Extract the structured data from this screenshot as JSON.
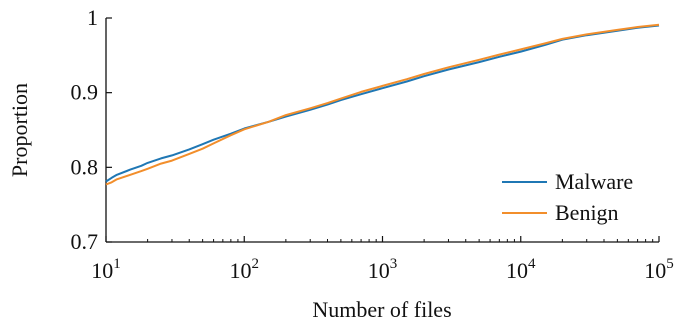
{
  "chart_data": {
    "type": "line",
    "xlabel": "Number of files",
    "ylabel": "Proportion",
    "x_scale": "log",
    "xlim": [
      10,
      100000
    ],
    "ylim": [
      0.7,
      1.0
    ],
    "x_ticks": [
      {
        "value": 10,
        "base": "10",
        "exp": "1"
      },
      {
        "value": 100,
        "base": "10",
        "exp": "2"
      },
      {
        "value": 1000,
        "base": "10",
        "exp": "3"
      },
      {
        "value": 10000,
        "base": "10",
        "exp": "4"
      },
      {
        "value": 100000,
        "base": "10",
        "exp": "5"
      }
    ],
    "y_ticks": [
      {
        "value": 0.7,
        "label": "0.7"
      },
      {
        "value": 0.8,
        "label": "0.8"
      },
      {
        "value": 0.9,
        "label": "0.9"
      },
      {
        "value": 1.0,
        "label": "1"
      }
    ],
    "grid": false,
    "legend_position": "lower-right",
    "series": [
      {
        "name": "Malware",
        "color": "#1f77b4",
        "points": [
          [
            10,
            0.781
          ],
          [
            11,
            0.786
          ],
          [
            12,
            0.79
          ],
          [
            15,
            0.797
          ],
          [
            18,
            0.802
          ],
          [
            20,
            0.806
          ],
          [
            25,
            0.812
          ],
          [
            30,
            0.816
          ],
          [
            40,
            0.824
          ],
          [
            50,
            0.831
          ],
          [
            60,
            0.837
          ],
          [
            80,
            0.845
          ],
          [
            100,
            0.852
          ],
          [
            150,
            0.861
          ],
          [
            200,
            0.868
          ],
          [
            300,
            0.877
          ],
          [
            400,
            0.884
          ],
          [
            500,
            0.89
          ],
          [
            700,
            0.898
          ],
          [
            1000,
            0.906
          ],
          [
            1500,
            0.915
          ],
          [
            2000,
            0.922
          ],
          [
            3000,
            0.931
          ],
          [
            5000,
            0.941
          ],
          [
            7000,
            0.948
          ],
          [
            10000,
            0.955
          ],
          [
            15000,
            0.964
          ],
          [
            20000,
            0.971
          ],
          [
            30000,
            0.977
          ],
          [
            50000,
            0.983
          ],
          [
            70000,
            0.987
          ],
          [
            100000,
            0.99
          ]
        ]
      },
      {
        "name": "Benign",
        "color": "#f28e2b",
        "points": [
          [
            10,
            0.777
          ],
          [
            11,
            0.78
          ],
          [
            12,
            0.784
          ],
          [
            15,
            0.79
          ],
          [
            18,
            0.795
          ],
          [
            20,
            0.798
          ],
          [
            25,
            0.805
          ],
          [
            30,
            0.809
          ],
          [
            40,
            0.818
          ],
          [
            50,
            0.825
          ],
          [
            60,
            0.832
          ],
          [
            80,
            0.843
          ],
          [
            100,
            0.851
          ],
          [
            150,
            0.861
          ],
          [
            200,
            0.87
          ],
          [
            300,
            0.879
          ],
          [
            400,
            0.886
          ],
          [
            500,
            0.892
          ],
          [
            700,
            0.901
          ],
          [
            1000,
            0.909
          ],
          [
            1500,
            0.918
          ],
          [
            2000,
            0.925
          ],
          [
            3000,
            0.934
          ],
          [
            5000,
            0.944
          ],
          [
            7000,
            0.951
          ],
          [
            10000,
            0.958
          ],
          [
            15000,
            0.966
          ],
          [
            20000,
            0.972
          ],
          [
            30000,
            0.978
          ],
          [
            50000,
            0.984
          ],
          [
            70000,
            0.988
          ],
          [
            100000,
            0.991
          ]
        ]
      }
    ]
  }
}
